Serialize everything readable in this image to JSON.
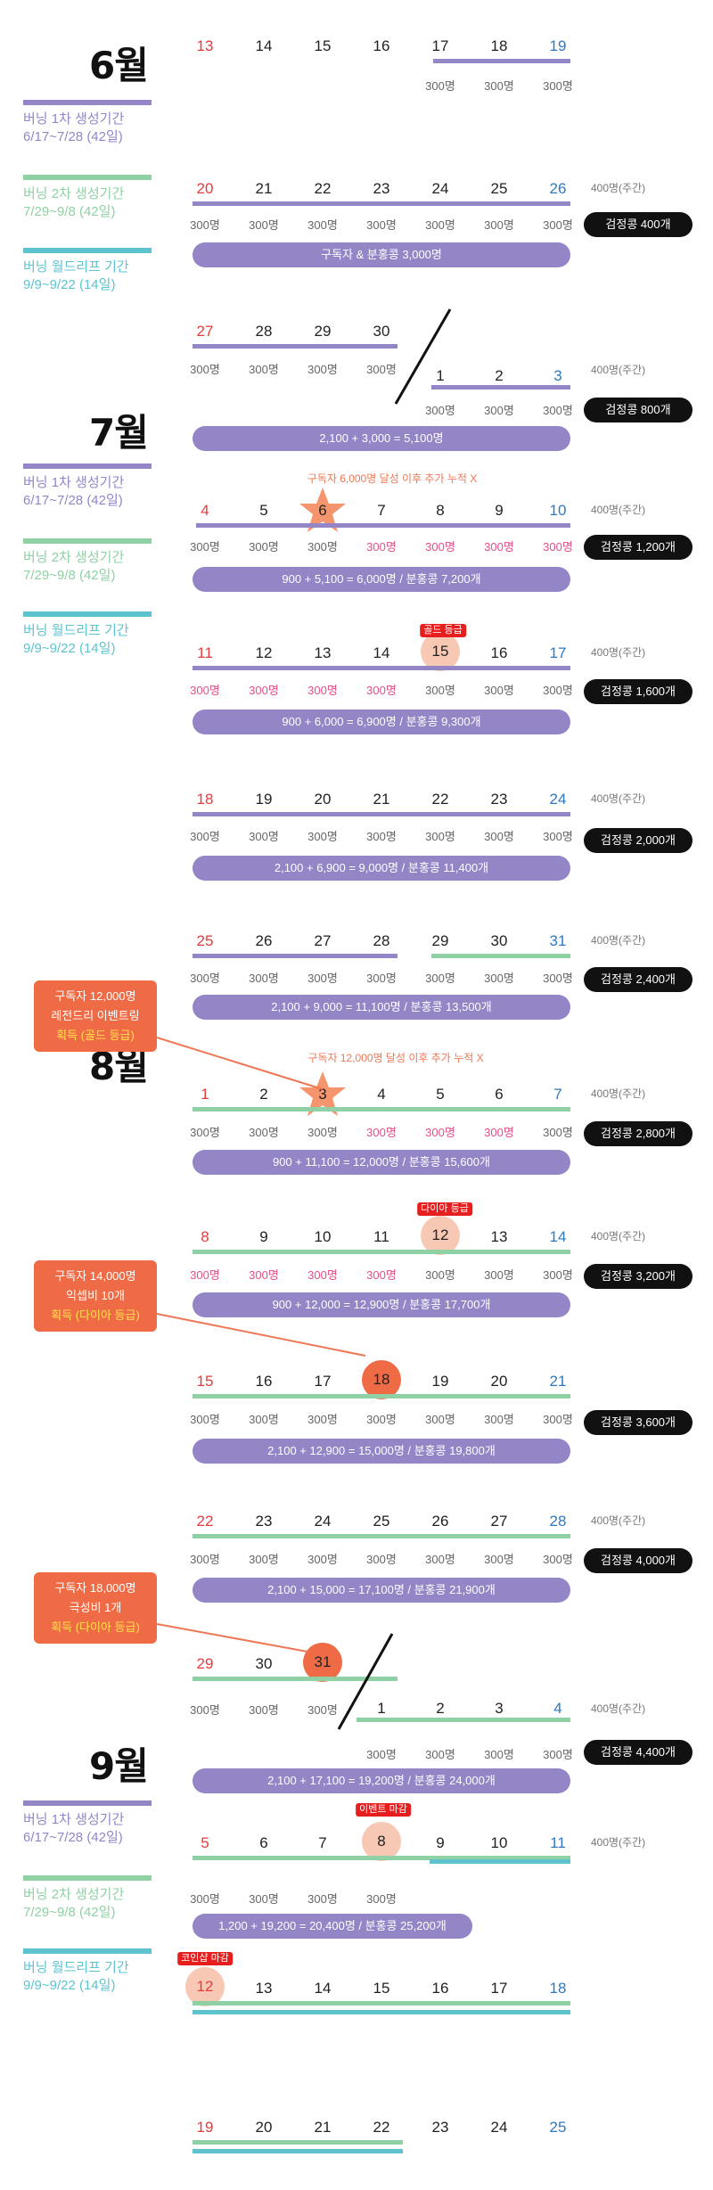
{
  "month_labels": {
    "jun": "6월",
    "jul": "7월",
    "aug": "8월",
    "sep": "9월"
  },
  "legend": {
    "p1": "버닝 1차 생성기간\n6/17~7/28 (42일)",
    "p2": "버닝 2차 생성기간\n7/29~9/8 (42일)",
    "p3": "버닝 월드리프 기간\n9/9~9/22 (14일)"
  },
  "colors": {
    "purple": "#9485c7",
    "green": "#8fd0a4",
    "blue": "#5ec3cf",
    "accent": "#ee6b45",
    "event_black": "#111111",
    "red": "#e63b3b",
    "sat_blue": "#2f78c4"
  },
  "labels": {
    "weekly": "400명(주간)"
  },
  "rows": [
    {
      "days": [
        "13",
        "14",
        "15",
        "16",
        "17",
        "18",
        "19"
      ],
      "counts": [
        "",
        "",
        "",
        "",
        "300명",
        "300명",
        "300명"
      ],
      "event": "",
      "summary": "",
      "weekly": false
    },
    {
      "days": [
        "20",
        "21",
        "22",
        "23",
        "24",
        "25",
        "26"
      ],
      "counts": [
        "300명",
        "300명",
        "300명",
        "300명",
        "300명",
        "300명",
        "300명"
      ],
      "event": "검정콩 400개",
      "summary": "구독자 & 분홍콩 3,000명",
      "weekly": true
    },
    {
      "days": [
        "27",
        "28",
        "29",
        "30",
        "1",
        "2",
        "3"
      ],
      "counts": [
        "300명",
        "300명",
        "300명",
        "300명",
        "300명",
        "300명",
        "300명"
      ],
      "event": "검정콩 800개",
      "summary": "2,100 + 3,000 = 5,100명",
      "weekly": true
    },
    {
      "days": [
        "4",
        "5",
        "6",
        "7",
        "8",
        "9",
        "10"
      ],
      "counts": [
        "300명",
        "300명",
        "300명",
        "300명",
        "300명",
        "300명",
        "300명"
      ],
      "event": "검정콩 1,200개",
      "summary": "900 + 5,100 = 6,000명 / 분홍콩 7,200개",
      "weekly": true
    },
    {
      "days": [
        "11",
        "12",
        "13",
        "14",
        "15",
        "16",
        "17"
      ],
      "counts": [
        "300명",
        "300명",
        "300명",
        "300명",
        "300명",
        "300명",
        "300명"
      ],
      "event": "검정콩 1,600개",
      "summary": "900 + 6,000 = 6,900명 / 분홍콩 9,300개",
      "weekly": true
    },
    {
      "days": [
        "18",
        "19",
        "20",
        "21",
        "22",
        "23",
        "24"
      ],
      "counts": [
        "300명",
        "300명",
        "300명",
        "300명",
        "300명",
        "300명",
        "300명"
      ],
      "event": "검정콩 2,000개",
      "summary": "2,100 + 6,900 = 9,000명 / 분홍콩 11,400개",
      "weekly": true
    },
    {
      "days": [
        "25",
        "26",
        "27",
        "28",
        "29",
        "30",
        "31"
      ],
      "counts": [
        "300명",
        "300명",
        "300명",
        "300명",
        "300명",
        "300명",
        "300명"
      ],
      "event": "검정콩 2,400개",
      "summary": "2,100 + 9,000 = 11,100명 / 분홍콩 13,500개",
      "weekly": true
    },
    {
      "days": [
        "1",
        "2",
        "3",
        "4",
        "5",
        "6",
        "7"
      ],
      "counts": [
        "300명",
        "300명",
        "300명",
        "300명",
        "300명",
        "300명",
        "300명"
      ],
      "event": "검정콩 2,800개",
      "summary": "900 + 11,100 = 12,000명  / 분홍콩 15,600개",
      "weekly": true
    },
    {
      "days": [
        "8",
        "9",
        "10",
        "11",
        "12",
        "13",
        "14"
      ],
      "counts": [
        "300명",
        "300명",
        "300명",
        "300명",
        "300명",
        "300명",
        "300명"
      ],
      "event": "검정콩 3,200개",
      "summary": "900 + 12,000 = 12,900명 / 분홍콩 17,700개",
      "weekly": true
    },
    {
      "days": [
        "15",
        "16",
        "17",
        "18",
        "19",
        "20",
        "21"
      ],
      "counts": [
        "300명",
        "300명",
        "300명",
        "300명",
        "300명",
        "300명",
        "300명"
      ],
      "event": "검정콩 3,600개",
      "summary": "2,100 + 12,900 = 15,000명 / 분홍콩 19,800개",
      "weekly": false
    },
    {
      "days": [
        "22",
        "23",
        "24",
        "25",
        "26",
        "27",
        "28"
      ],
      "counts": [
        "300명",
        "300명",
        "300명",
        "300명",
        "300명",
        "300명",
        "300명"
      ],
      "event": "검정콩 4,000개",
      "summary": "2,100 + 15,000 = 17,100명 / 분홍콩 21,900개",
      "weekly": true
    },
    {
      "days": [
        "29",
        "30",
        "31",
        "1",
        "2",
        "3",
        "4"
      ],
      "counts": [
        "300명",
        "300명",
        "300명",
        "300명",
        "300명",
        "300명",
        "300명"
      ],
      "event": "검정콩 4,400개",
      "summary": "2,100 + 17,100 = 19,200명 / 분홍콩 24,000개",
      "weekly": true
    },
    {
      "days": [
        "5",
        "6",
        "7",
        "8",
        "9",
        "10",
        "11"
      ],
      "counts": [
        "300명",
        "300명",
        "300명",
        "300명",
        "",
        "",
        ""
      ],
      "event": "",
      "summary": "1,200 + 19,200 = 20,400명 / 분홍콩 25,200개",
      "weekly": true
    },
    {
      "days": [
        "12",
        "13",
        "14",
        "15",
        "16",
        "17",
        "18"
      ],
      "counts": [],
      "event": "",
      "summary": "",
      "weekly": false
    },
    {
      "days": [
        "19",
        "20",
        "21",
        "22",
        "23",
        "24",
        "25"
      ],
      "counts": [],
      "event": "",
      "summary": "",
      "weekly": false
    }
  ],
  "annotations": {
    "jul6": "구독자 6,000명 달성 이후 추가 누적 X",
    "aug3": "구독자 12,000명 달성 이후 추가 누적 X"
  },
  "tags": {
    "gold": "골드 등급",
    "diamond": "다이아 등급",
    "event_end": "이벤트 마감",
    "coin_end": "코인샵 마감"
  },
  "notes": [
    {
      "line1": "구독자 12,000명",
      "line2": "레전드리 이벤트링",
      "line3": "획득 (골드 등급)"
    },
    {
      "line1": "구독자 14,000명",
      "line2": "익셉비 10개",
      "line3": "획득 (다이아 등급)"
    },
    {
      "line1": "구독자 18,000명",
      "line2": "극성비 1개",
      "line3": "획득 (다이아 등급)"
    }
  ]
}
